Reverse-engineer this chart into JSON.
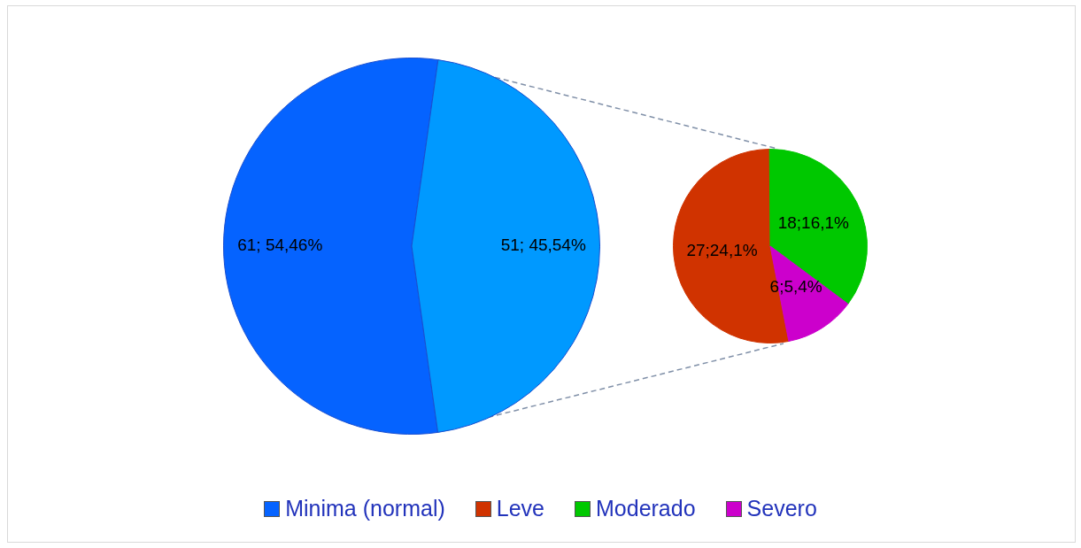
{
  "chart_data": [
    {
      "type": "pie",
      "categories": [
        "Minima (normal)",
        null
      ],
      "values": [
        61,
        51
      ],
      "colors": [
        "#0563ff",
        "#0099ff"
      ],
      "value_labels": [
        "61; 54,46%",
        "51; 45,54%"
      ],
      "legend": "bottom"
    },
    {
      "type": "pie",
      "categories": [
        "Leve",
        "Moderado",
        "Severo"
      ],
      "values": [
        27,
        18,
        6
      ],
      "colors": [
        "#d03300",
        "#00c800",
        "#cc00cc"
      ],
      "value_labels": [
        "27;24,1%",
        "18;16,1%",
        "6;5,4%"
      ],
      "legend": "bottom"
    }
  ]
}
